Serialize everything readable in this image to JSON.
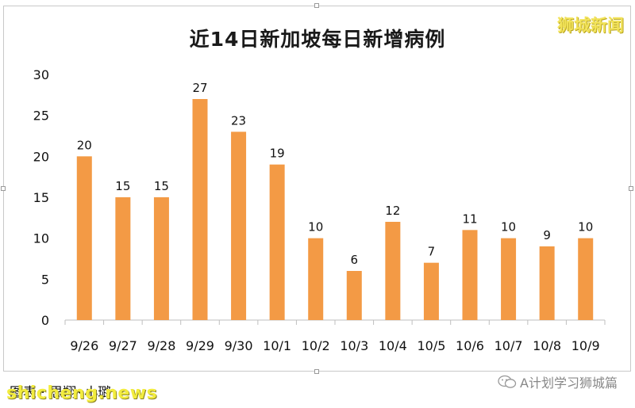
{
  "title": "近14日新加坡每日新增病例",
  "watermark_top_right": "狮城新闻",
  "footer": {
    "credit": "图表 · 思翔•小璐",
    "watermark_bottom_left": "shicheng.news",
    "account": "A计划学习狮城篇"
  },
  "colors": {
    "bar": "#f39a45",
    "axis": "#bfbfbf"
  },
  "chart_data": {
    "type": "bar",
    "title": "近14日新加坡每日新增病例",
    "categories": [
      "9/26",
      "9/27",
      "9/28",
      "9/29",
      "9/30",
      "10/1",
      "10/2",
      "10/3",
      "10/4",
      "10/5",
      "10/6",
      "10/7",
      "10/8",
      "10/9"
    ],
    "values": [
      20,
      15,
      15,
      27,
      23,
      19,
      10,
      6,
      12,
      7,
      11,
      10,
      9,
      10
    ],
    "ylim": [
      0,
      30
    ],
    "yticks": [
      0,
      5,
      10,
      15,
      20,
      25,
      30
    ],
    "xlabel": "",
    "ylabel": "",
    "grid": false,
    "data_labels": true
  }
}
